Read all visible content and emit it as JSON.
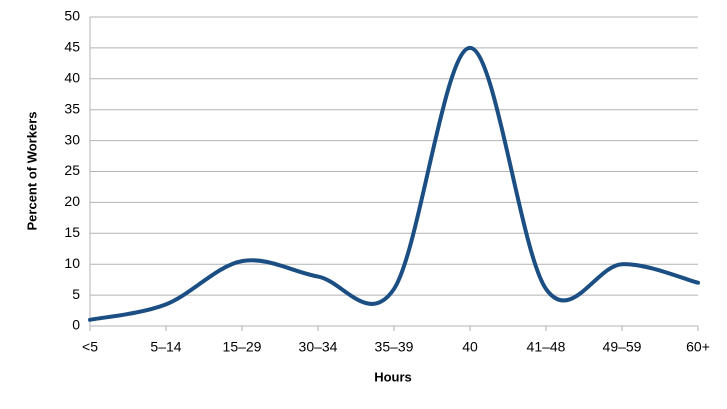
{
  "chart_data": {
    "type": "line",
    "x_label": "Hours",
    "y_label": "Percent of Workers",
    "categories": [
      "<5",
      "5–14",
      "15–29",
      "30–34",
      "35–39",
      "40",
      "41–48",
      "49–59",
      "60+"
    ],
    "series": [
      {
        "name": "Percent of Workers",
        "color": "#1b4f84",
        "values": [
          1,
          3.5,
          10.5,
          8,
          6,
          45,
          6,
          10,
          7
        ]
      }
    ],
    "ylim": [
      0,
      50
    ],
    "yticks": [
      0,
      5,
      10,
      15,
      20,
      25,
      30,
      35,
      40,
      45,
      50
    ],
    "grid": true,
    "smooth": true
  }
}
